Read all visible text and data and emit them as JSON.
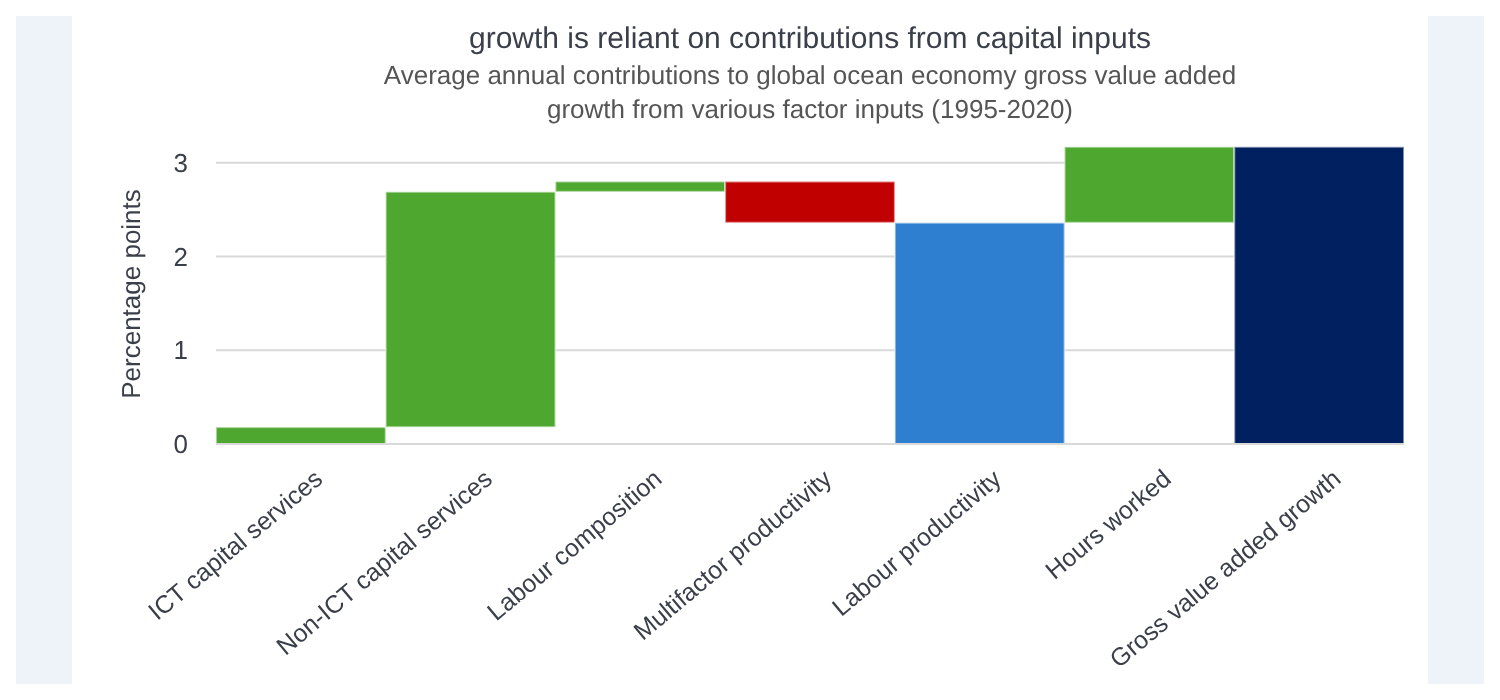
{
  "chart_data": {
    "type": "bar",
    "title": "growth is reliant on contributions from capital inputs",
    "subtitle": "Average annual contributions to global ocean economy gross value added growth from various factor inputs (1995-2020)",
    "ylabel": "Percentage points",
    "categories": [
      "ICT capital services",
      "Non-ICT capital services",
      "Labour composition",
      "Multifactor productivity",
      "Labour productivity",
      "Hours worked",
      "Gross value added growth"
    ],
    "values": [
      0.18,
      2.51,
      0.11,
      -0.44,
      2.36,
      0.81,
      3.17
    ],
    "base": [
      0,
      0.18,
      2.69,
      2.8,
      0,
      2.36,
      0
    ],
    "colors": [
      "#4ea72e",
      "#4ea72e",
      "#4ea72e",
      "#c00000",
      "#2e7fd0",
      "#4ea72e",
      "#002060"
    ],
    "ylim": [
      0,
      3.2
    ],
    "yticks": [
      0,
      1,
      2,
      3
    ],
    "grid": "y"
  }
}
